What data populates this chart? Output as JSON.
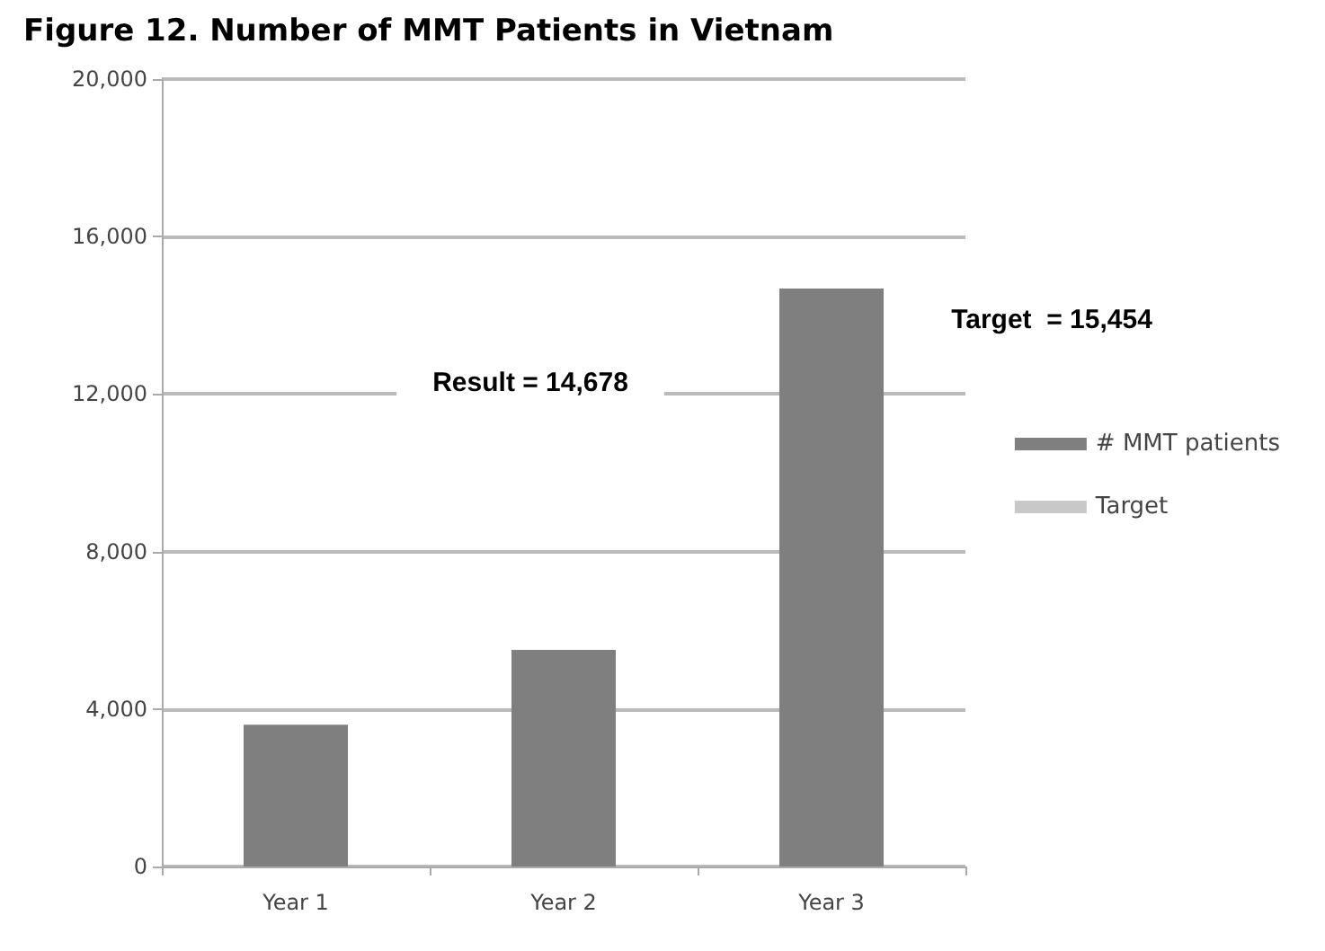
{
  "chart_data": {
    "type": "bar",
    "title": "Figure 12. Number of MMT Patients in Vietnam",
    "categories": [
      "Year 1",
      "Year 2",
      "Year 3"
    ],
    "series": [
      {
        "name": "# MMT patients",
        "color": "#7f7f7f",
        "values": [
          3600,
          5500,
          14678
        ]
      },
      {
        "name": "Target",
        "type": "line",
        "color": "#c8c8c8",
        "values": [
          null,
          null,
          null
        ]
      }
    ],
    "annotations": [
      "Result = 14,678",
      "Target  = 15,454"
    ],
    "ylim": [
      0,
      20000
    ],
    "yticks": [
      {
        "value": 0,
        "label": "0"
      },
      {
        "value": 4000,
        "label": "4,000"
      },
      {
        "value": 8000,
        "label": "8,000"
      },
      {
        "value": 12000,
        "label": "12,000"
      },
      {
        "value": 16000,
        "label": "16,000"
      },
      {
        "value": 20000,
        "label": "20,000"
      }
    ],
    "grid": "y",
    "legend": "right"
  }
}
